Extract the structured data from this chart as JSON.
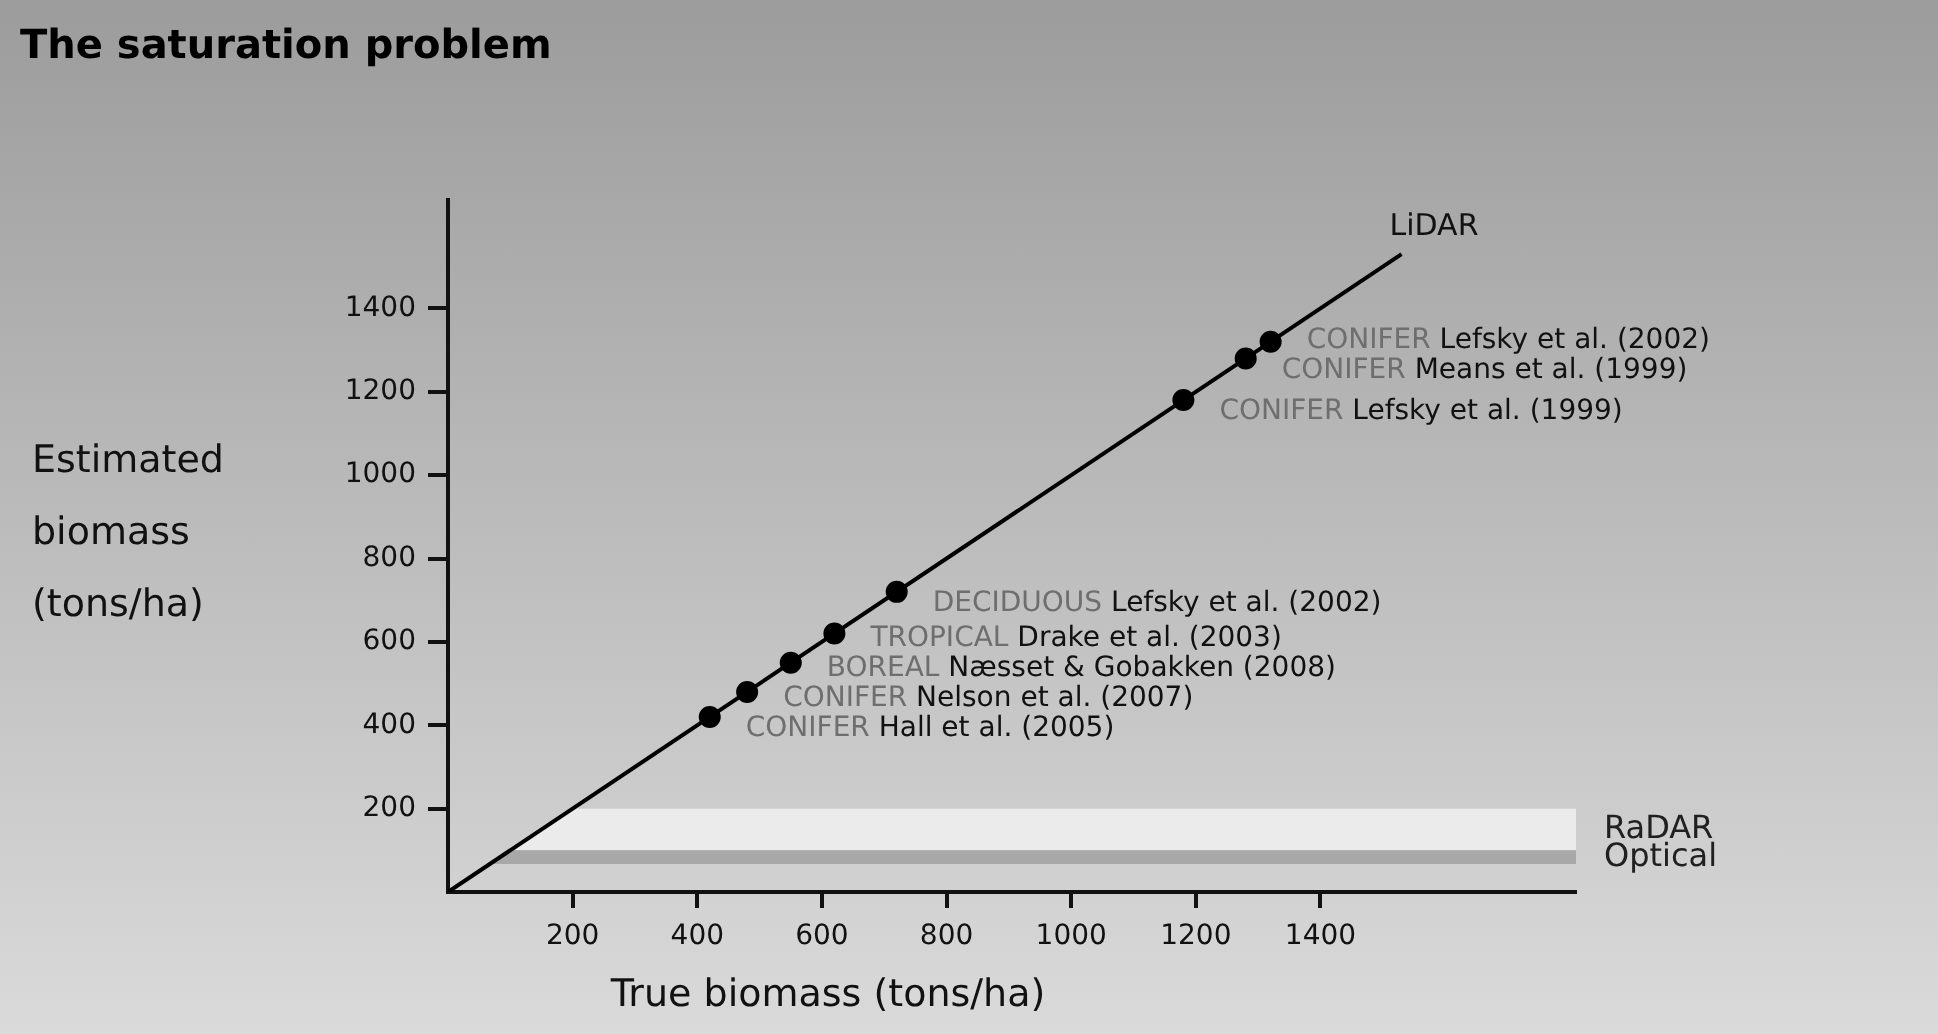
{
  "chart_data": {
    "type": "scatter",
    "title": "The saturation problem",
    "xlabel": "True biomass (tons/ha)",
    "ylabel": "Estimated biomass (tons/ha)",
    "xlim": [
      0,
      1810
    ],
    "ylim": [
      0,
      1660
    ],
    "xticks": [
      200,
      400,
      600,
      800,
      1000,
      1200,
      1400
    ],
    "yticks": [
      200,
      400,
      600,
      800,
      1000,
      1200,
      1400
    ],
    "grid": false,
    "legend": false,
    "marker": "circle",
    "series": [
      {
        "name": "LiDAR",
        "type": "line",
        "color": "#000000",
        "x": [
          0,
          1530
        ],
        "values": [
          0,
          1530
        ],
        "marker": "none"
      },
      {
        "color": "#000000",
        "x": [
          420,
          480,
          550,
          620,
          720,
          1180,
          1280,
          1320
        ],
        "values": [
          420,
          480,
          550,
          620,
          720,
          1180,
          1280,
          1320
        ]
      }
    ],
    "bands": [
      {
        "axis": "y",
        "from": 100,
        "to": 200,
        "label": "RaDAR",
        "color": "#ebebeb"
      },
      {
        "axis": "y",
        "from": 67,
        "to": 100,
        "label": "Optical",
        "color": "#a8a8a8"
      }
    ],
    "annotations": [
      {
        "text": "CONIFER Hall et al. (2005)",
        "x": 420,
        "y": 420
      },
      {
        "text": "CONIFER Nelson et al. (2007)",
        "x": 480,
        "y": 480
      },
      {
        "text": "BOREAL Næsset & Gobakken (2008)",
        "x": 550,
        "y": 550
      },
      {
        "text": "TROPICAL Drake et al. (2003)",
        "x": 620,
        "y": 620
      },
      {
        "text": "DECIDUOUS Lefsky et al. (2002)",
        "x": 720,
        "y": 720
      },
      {
        "text": "CONIFER Lefsky et al. (1999)",
        "x": 1180,
        "y": 1180
      },
      {
        "text": "CONIFER Means et al. (1999)",
        "x": 1280,
        "y": 1280
      },
      {
        "text": "CONIFER Lefsky et al. (2002)",
        "x": 1320,
        "y": 1320
      }
    ]
  }
}
